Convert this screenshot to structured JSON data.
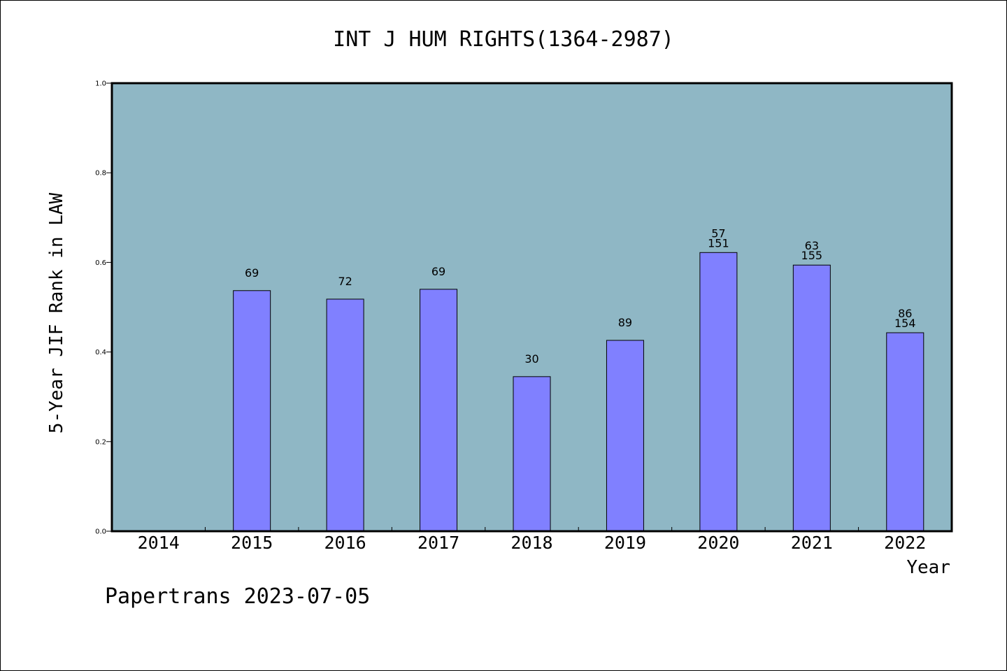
{
  "chart_data": {
    "type": "bar",
    "title": "INT J HUM RIGHTS(1364-2987)",
    "xlabel": "Year",
    "ylabel": "5-Year JIF Rank in LAW",
    "ylim": [
      0.0,
      1.0
    ],
    "yticks": [
      "0.0",
      "0.2",
      "0.4",
      "0.6",
      "0.8",
      "1.0"
    ],
    "ytick_values": [
      0.0,
      0.2,
      0.4,
      0.6,
      0.8,
      1.0
    ],
    "categories": [
      "2014",
      "2015",
      "2016",
      "2017",
      "2018",
      "2019",
      "2020",
      "2021",
      "2022"
    ],
    "values": [
      null,
      0.537,
      0.518,
      0.54,
      0.345,
      0.426,
      0.622,
      0.594,
      0.443
    ],
    "labels": [
      [],
      [
        "69"
      ],
      [
        "72"
      ],
      [
        "69"
      ],
      [
        "30"
      ],
      [
        "89"
      ],
      [
        "57",
        "151"
      ],
      [
        "63",
        "155"
      ],
      [
        "86",
        "154"
      ]
    ],
    "plot_background": "#8fb7c5",
    "bar_color": "#8080ff",
    "grid": false
  },
  "footer": "Papertrans 2023-07-05"
}
